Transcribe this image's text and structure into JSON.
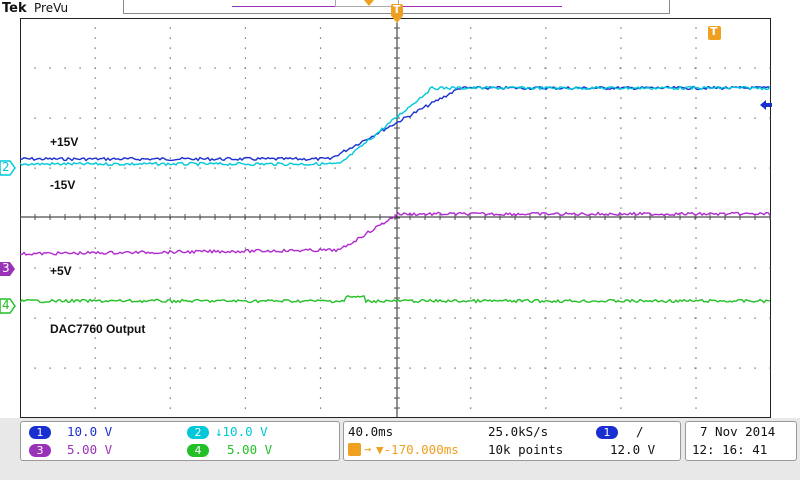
{
  "brand": {
    "logo": "Tek",
    "mode": "PreVu"
  },
  "trigger_marker": {
    "glyph": "T"
  },
  "channel_markers": [
    {
      "label": "2",
      "color": "#00c8d8"
    },
    {
      "label": "3",
      "color": "#9a32b8"
    },
    {
      "label": "4",
      "color": "#22c026"
    }
  ],
  "waveform_labels": {
    "plus15": "+15V",
    "minus15": "-15V",
    "plus5": "+5V",
    "output": "DAC7760 Output"
  },
  "channels": [
    {
      "id": "1",
      "scale": "10.0 V",
      "color": "#1a2fd0"
    },
    {
      "id": "2",
      "scale": "↓10.0 V",
      "color": "#00c8d8"
    },
    {
      "id": "3",
      "scale": "5.00 V",
      "color": "#9a32b8"
    },
    {
      "id": "4",
      "scale": "5.00 V",
      "color": "#22c026"
    }
  ],
  "horizontal": {
    "timebase": "40.0ms",
    "sample_rate": "25.0kS/s",
    "trigger_delay": "▼-170.000ms",
    "record_length": "10k points"
  },
  "trigger": {
    "source": "1",
    "slope": "/",
    "level": "12.0 V"
  },
  "datetime": {
    "date": "7 Nov  2014",
    "time": "12: 16: 41"
  },
  "colors": {
    "ch1": "#1a2fd0",
    "ch2": "#00c8d8",
    "ch3": "#9a32b8",
    "ch4": "#22c026",
    "trigger": "#f0a020",
    "grid": "#222222"
  }
}
